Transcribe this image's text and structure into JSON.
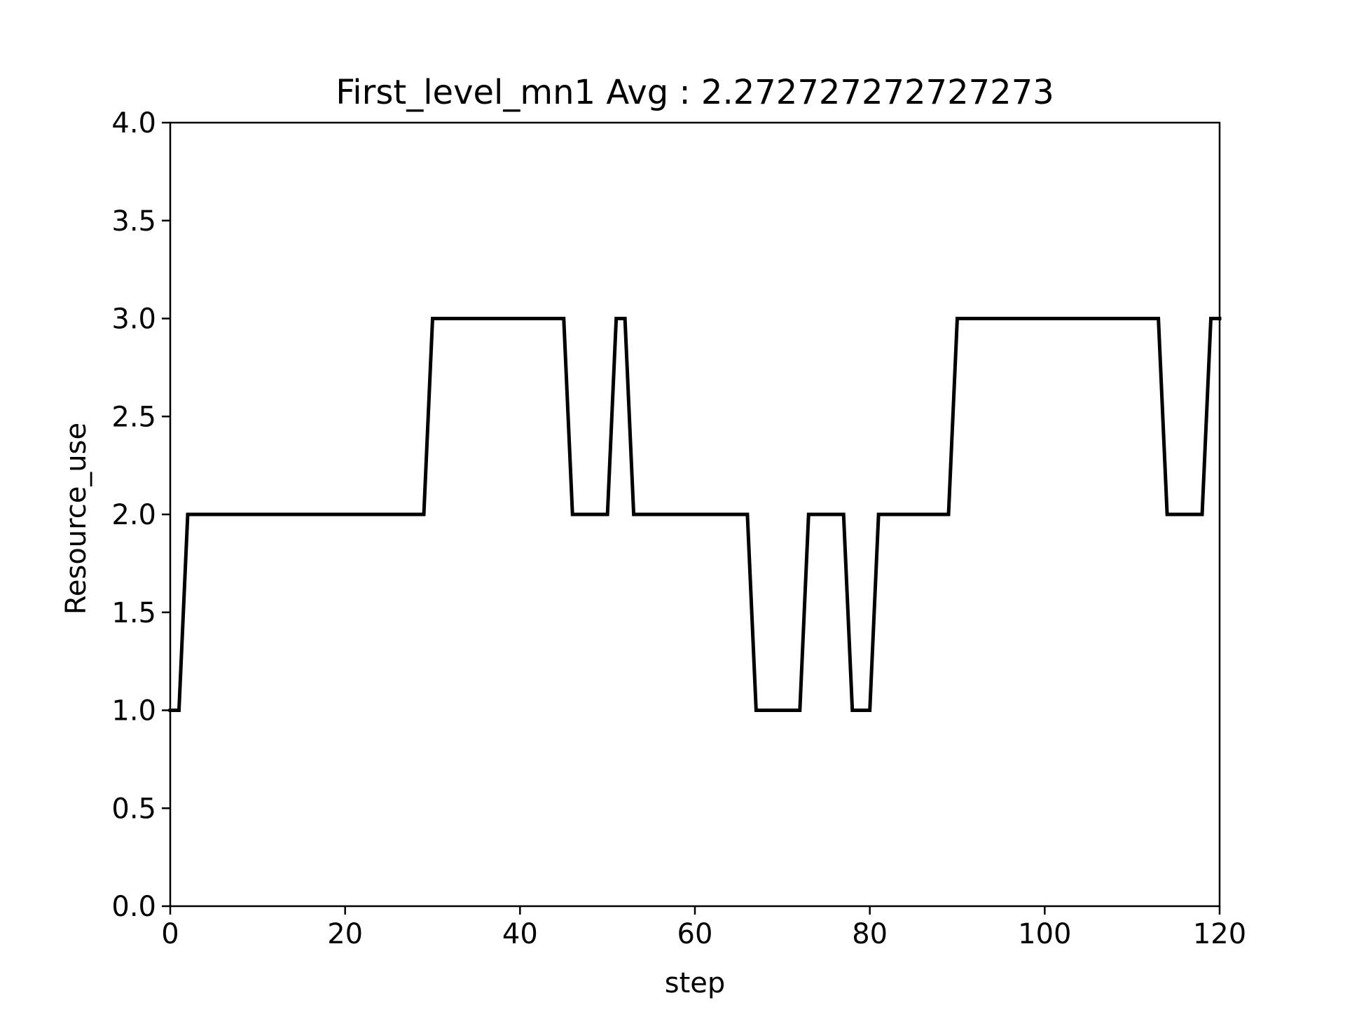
{
  "chart_data": {
    "type": "line",
    "title": "First_level_mn1 Avg : 2.272727272727273",
    "xlabel": "step",
    "ylabel": "Resource_use",
    "xlim": [
      0,
      120
    ],
    "ylim": [
      0,
      4
    ],
    "xticks": [
      0,
      20,
      40,
      60,
      80,
      100,
      120
    ],
    "xtick_labels": [
      "0",
      "20",
      "40",
      "60",
      "80",
      "100",
      "120"
    ],
    "yticks": [
      0,
      0.5,
      1,
      1.5,
      2,
      2.5,
      3,
      3.5,
      4
    ],
    "ytick_labels": [
      "0.0",
      "0.5",
      "1.0",
      "1.5",
      "2.0",
      "2.5",
      "3.0",
      "3.5",
      "4.0"
    ],
    "grid": false,
    "line_color": "#000000",
    "series": [
      {
        "values": [
          1,
          1,
          2,
          2,
          2,
          2,
          2,
          2,
          2,
          2,
          2,
          2,
          2,
          2,
          2,
          2,
          2,
          2,
          2,
          2,
          2,
          2,
          2,
          2,
          2,
          2,
          2,
          2,
          2,
          2,
          3,
          3,
          3,
          3,
          3,
          3,
          3,
          3,
          3,
          3,
          3,
          3,
          3,
          3,
          3,
          3,
          2,
          2,
          2,
          2,
          2,
          3,
          3,
          2,
          2,
          2,
          2,
          2,
          2,
          2,
          2,
          2,
          2,
          2,
          2,
          2,
          2,
          1,
          1,
          1,
          1,
          1,
          1,
          2,
          2,
          2,
          2,
          2,
          1,
          1,
          1,
          2,
          2,
          2,
          2,
          2,
          2,
          2,
          2,
          2,
          3,
          3,
          3,
          3,
          3,
          3,
          3,
          3,
          3,
          3,
          3,
          3,
          3,
          3,
          3,
          3,
          3,
          3,
          3,
          3,
          3,
          3,
          3,
          3,
          2,
          2,
          2,
          2,
          2,
          3,
          3
        ]
      }
    ]
  }
}
